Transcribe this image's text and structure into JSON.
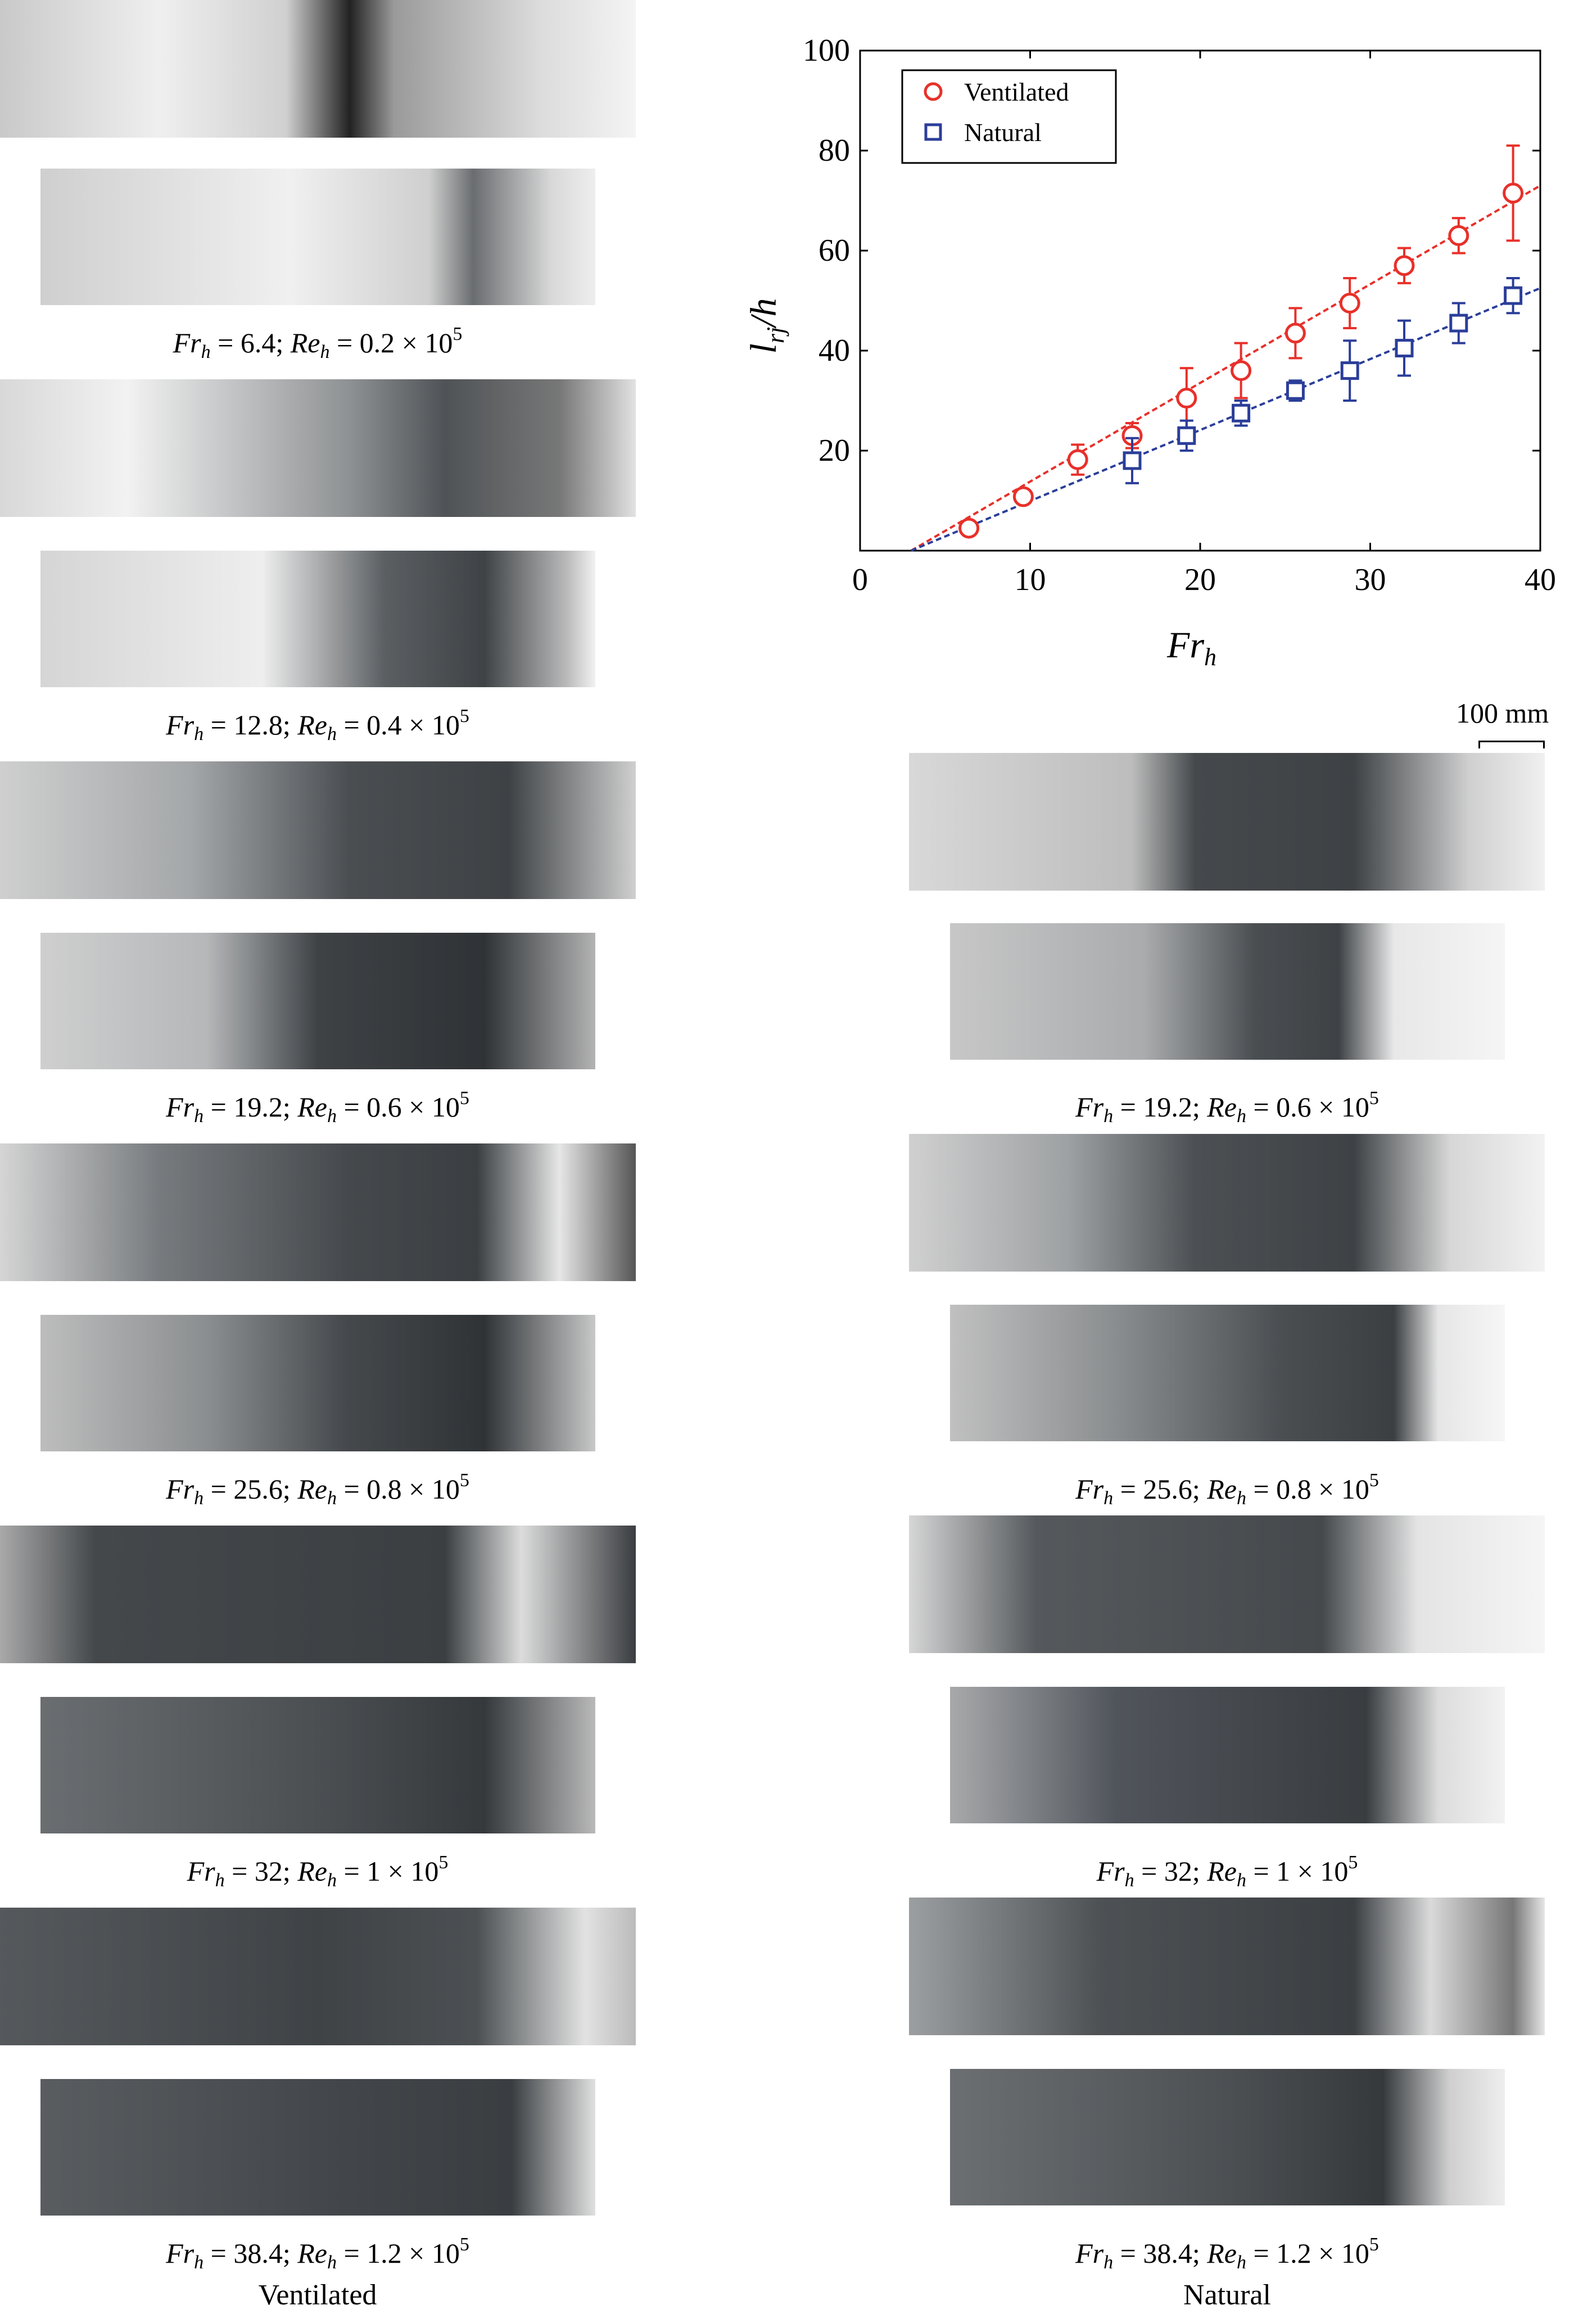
{
  "figure": {
    "column_labels": {
      "left": "Ventilated",
      "right": "Natural"
    },
    "captions": [
      {
        "fr": "6.4",
        "re": "0.2"
      },
      {
        "fr": "12.8",
        "re": "0.4"
      },
      {
        "fr": "19.2",
        "re": "0.6"
      },
      {
        "fr": "25.6",
        "re": "0.8"
      },
      {
        "fr": "32",
        "re": "1"
      },
      {
        "fr": "38.4",
        "re": "1.2"
      }
    ],
    "caption_parts": {
      "fr": "Fr",
      "re": "Re",
      "sub": "h",
      "eq": " = ",
      "sep": "; ",
      "times": " × 10",
      "exp": "5"
    },
    "scale_bar": "100 mm"
  },
  "chart_data": {
    "type": "scatter",
    "xlabel_main": "Fr",
    "xlabel_sub": "h",
    "ylabel_main": "l",
    "ylabel_sub": "rj",
    "ylabel_tail": "/h",
    "xlim": [
      0,
      40
    ],
    "ylim": [
      0,
      100
    ],
    "xticks": [
      0,
      10,
      20,
      30,
      40
    ],
    "yticks": [
      20,
      40,
      60,
      80,
      100
    ],
    "legend_position": "top-left",
    "series": [
      {
        "name": "Ventilated",
        "color": "#e8302a",
        "marker": "circle",
        "x": [
          6.4,
          9.6,
          12.8,
          16.0,
          19.2,
          22.4,
          25.6,
          28.8,
          32.0,
          35.2,
          38.4
        ],
        "y": [
          4.5,
          10.8,
          18.2,
          23.0,
          30.5,
          36.0,
          43.5,
          49.5,
          57.0,
          63.0,
          71.5
        ],
        "err": [
          0.8,
          1.0,
          3.0,
          2.5,
          6.0,
          5.5,
          5.0,
          5.0,
          3.5,
          3.5,
          9.5
        ],
        "fit": {
          "x": [
            3,
            40
          ],
          "y": [
            0,
            73
          ]
        }
      },
      {
        "name": "Natural",
        "color": "#2b3e99",
        "marker": "square",
        "x": [
          16.0,
          19.2,
          22.4,
          25.6,
          28.8,
          32.0,
          35.2,
          38.4
        ],
        "y": [
          18.0,
          23.0,
          27.5,
          32.0,
          36.0,
          40.5,
          45.5,
          51.0
        ],
        "err": [
          4.5,
          3.0,
          2.5,
          2.0,
          6.0,
          5.5,
          4.0,
          3.5
        ],
        "fit": {
          "x": [
            3,
            40
          ],
          "y": [
            0,
            52.5
          ]
        }
      }
    ]
  }
}
